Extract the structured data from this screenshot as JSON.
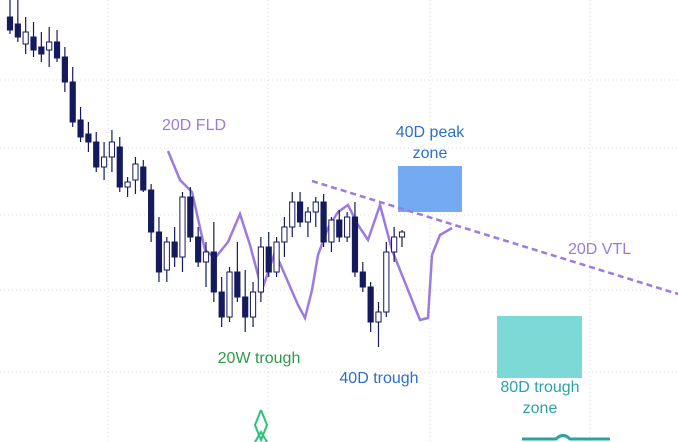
{
  "chart_data": {
    "type": "candlestick",
    "ylim": [
      0,
      442
    ],
    "up_color": "#ffffff",
    "down_color": "#141a5c",
    "open": [
      425,
      418,
      398,
      405,
      395,
      392,
      400,
      385,
      360,
      322,
      308,
      300,
      275,
      285,
      295,
      255,
      262,
      275,
      252,
      210,
      172,
      200,
      185,
      245,
      205,
      180,
      190,
      150,
      125,
      170,
      145,
      125,
      150,
      195,
      170,
      200,
      215,
      240,
      220,
      230,
      240,
      200,
      222,
      205,
      225,
      170,
      155,
      120,
      130,
      190,
      205
    ],
    "high": [
      442,
      442,
      425,
      420,
      410,
      415,
      412,
      395,
      375,
      335,
      320,
      310,
      300,
      312,
      305,
      265,
      285,
      282,
      258,
      225,
      205,
      215,
      250,
      255,
      215,
      200,
      220,
      165,
      175,
      200,
      172,
      160,
      205,
      210,
      205,
      225,
      250,
      250,
      235,
      245,
      248,
      225,
      232,
      230,
      240,
      180,
      160,
      140,
      200,
      215,
      212
    ],
    "low": [
      408,
      400,
      388,
      385,
      380,
      375,
      380,
      350,
      315,
      300,
      290,
      270,
      262,
      270,
      250,
      245,
      248,
      250,
      200,
      160,
      160,
      175,
      170,
      200,
      175,
      155,
      140,
      115,
      120,
      140,
      110,
      115,
      140,
      165,
      165,
      185,
      205,
      215,
      205,
      215,
      195,
      190,
      200,
      200,
      165,
      150,
      110,
      95,
      125,
      180,
      195
    ],
    "close": [
      412,
      405,
      410,
      392,
      388,
      400,
      384,
      360,
      320,
      305,
      300,
      275,
      285,
      300,
      255,
      260,
      278,
      252,
      210,
      170,
      200,
      185,
      245,
      205,
      180,
      190,
      150,
      125,
      170,
      145,
      125,
      150,
      195,
      170,
      200,
      215,
      240,
      220,
      230,
      240,
      200,
      222,
      205,
      225,
      170,
      155,
      120,
      130,
      190,
      205,
      210
    ],
    "annotations": {
      "fld": "20D FLD",
      "peak_zone": [
        "40D peak",
        "zone"
      ],
      "vtl": "20D VTL",
      "w_trough": "20W trough",
      "trough_40": "40D trough",
      "trough_zone_80": [
        "80D trough",
        "zone"
      ]
    }
  }
}
